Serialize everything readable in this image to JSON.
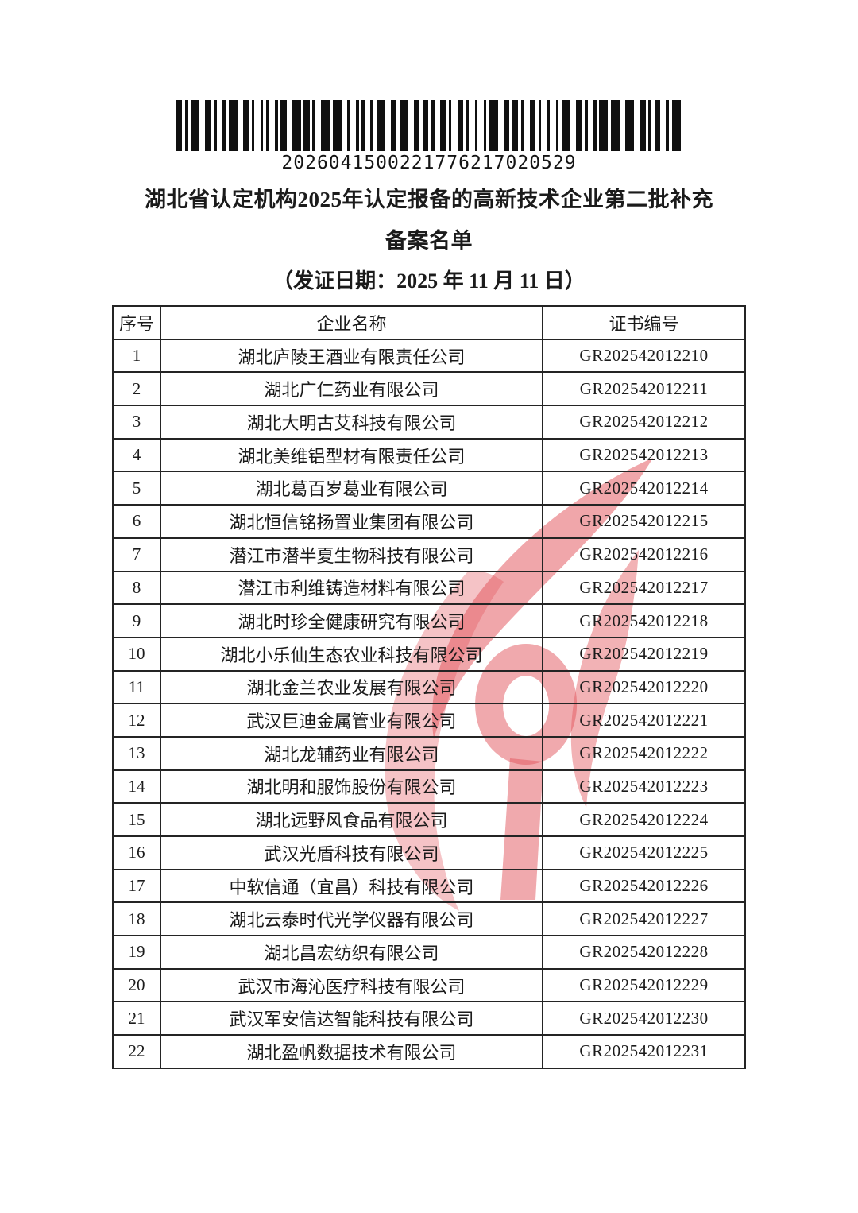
{
  "page": {
    "barcode_number": "2026041500221776217020529",
    "title_line1": "湖北省认定机构2025年认定报备的高新技术企业第二批补充",
    "title_line2": "备案名单",
    "date_line": "（发证日期：2025 年 11 月 11 日）"
  },
  "watermark": {
    "name": "red-torch-flame-watermark",
    "color": "#e2545c"
  },
  "table": {
    "headers": [
      "序号",
      "企业名称",
      "证书编号"
    ],
    "rows": [
      {
        "no": "1",
        "name": "湖北庐陵王酒业有限责任公司",
        "cert": "GR202542012210"
      },
      {
        "no": "2",
        "name": "湖北广仁药业有限公司",
        "cert": "GR202542012211"
      },
      {
        "no": "3",
        "name": "湖北大明古艾科技有限公司",
        "cert": "GR202542012212"
      },
      {
        "no": "4",
        "name": "湖北美维铝型材有限责任公司",
        "cert": "GR202542012213"
      },
      {
        "no": "5",
        "name": "湖北葛百岁葛业有限公司",
        "cert": "GR202542012214"
      },
      {
        "no": "6",
        "name": "湖北恒信铭扬置业集团有限公司",
        "cert": "GR202542012215"
      },
      {
        "no": "7",
        "name": "潜江市潜半夏生物科技有限公司",
        "cert": "GR202542012216"
      },
      {
        "no": "8",
        "name": "潜江市利维铸造材料有限公司",
        "cert": "GR202542012217"
      },
      {
        "no": "9",
        "name": "湖北时珍全健康研究有限公司",
        "cert": "GR202542012218"
      },
      {
        "no": "10",
        "name": "湖北小乐仙生态农业科技有限公司",
        "cert": "GR202542012219"
      },
      {
        "no": "11",
        "name": "湖北金兰农业发展有限公司",
        "cert": "GR202542012220"
      },
      {
        "no": "12",
        "name": "武汉巨迪金属管业有限公司",
        "cert": "GR202542012221"
      },
      {
        "no": "13",
        "name": "湖北龙辅药业有限公司",
        "cert": "GR202542012222"
      },
      {
        "no": "14",
        "name": "湖北明和服饰股份有限公司",
        "cert": "GR202542012223"
      },
      {
        "no": "15",
        "name": "湖北远野风食品有限公司",
        "cert": "GR202542012224"
      },
      {
        "no": "16",
        "name": "武汉光盾科技有限公司",
        "cert": "GR202542012225"
      },
      {
        "no": "17",
        "name": "中软信通（宜昌）科技有限公司",
        "cert": "GR202542012226"
      },
      {
        "no": "18",
        "name": "湖北云泰时代光学仪器有限公司",
        "cert": "GR202542012227"
      },
      {
        "no": "19",
        "name": "湖北昌宏纺织有限公司",
        "cert": "GR202542012228"
      },
      {
        "no": "20",
        "name": "武汉市海沁医疗科技有限公司",
        "cert": "GR202542012229"
      },
      {
        "no": "21",
        "name": "武汉军安信达智能科技有限公司",
        "cert": "GR202542012230"
      },
      {
        "no": "22",
        "name": "湖北盈帆数据技术有限公司",
        "cert": "GR202542012231"
      }
    ]
  }
}
